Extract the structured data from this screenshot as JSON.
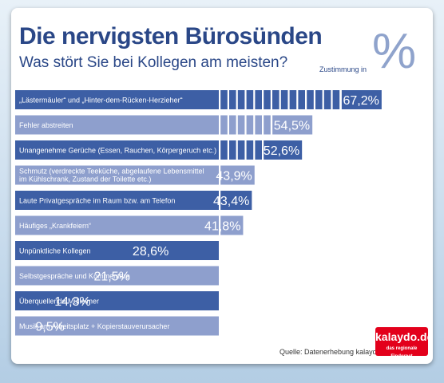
{
  "header": {
    "title": "Die nervigsten Bürosünden",
    "subtitle": "Was stört Sie bei Kollegen am meisten?",
    "percent_symbol": "%",
    "zustimmung": "Zustimmung in"
  },
  "footer": {
    "source": "Quelle: Datenerhebung kalaydo.de",
    "logo_name": "kalaydo.de",
    "logo_tagline": "das regionale Findernet"
  },
  "colors": {
    "dark_bar": "#3d5fa5",
    "light_bar": "#8e9fcd",
    "title": "#2a4787",
    "logo": "#e3001b"
  },
  "chart_data": {
    "type": "bar",
    "orientation": "horizontal",
    "xlim": [
      0,
      70
    ],
    "unit": "%",
    "categories": [
      [
        "„Lästermäuler“ und „Hinter-dem-Rücken-Herzieher“"
      ],
      [
        "Fehler abstreiten"
      ],
      [
        "Unangenehme Gerüche (Essen, Rauchen, Körpergeruch etc.)"
      ],
      [
        "Schmutz (verdreckte Teeküche, abgelaufene Lebensmittel",
        "im Kühlschrank, Zustand der Toilette etc.)"
      ],
      [
        "Laute Privatgespräche im Raum bzw. am Telefon"
      ],
      [
        "Häufiges „Krankfeiern“"
      ],
      [
        "Unpünktliche Kollegen"
      ],
      [
        "Selbstgespräche und Kommentare"
      ],
      [
        "Überquellende Mülleimer"
      ],
      [
        "Musik am Arbeitsplatz  + Kopierstauverursacher"
      ]
    ],
    "values": [
      67.2,
      54.5,
      52.6,
      43.9,
      43.4,
      41.8,
      28.6,
      21.5,
      14.3,
      9.5
    ],
    "value_labels": [
      "67,2%",
      "54,5%",
      "52,6%",
      "43,9%",
      "43,4%",
      "41,8%",
      "28,6%",
      "21,5%",
      "14,3%",
      "9,5%"
    ],
    "bar_style": [
      "dark",
      "light",
      "dark",
      "light",
      "dark",
      "light",
      "dark",
      "light",
      "dark",
      "light"
    ]
  }
}
